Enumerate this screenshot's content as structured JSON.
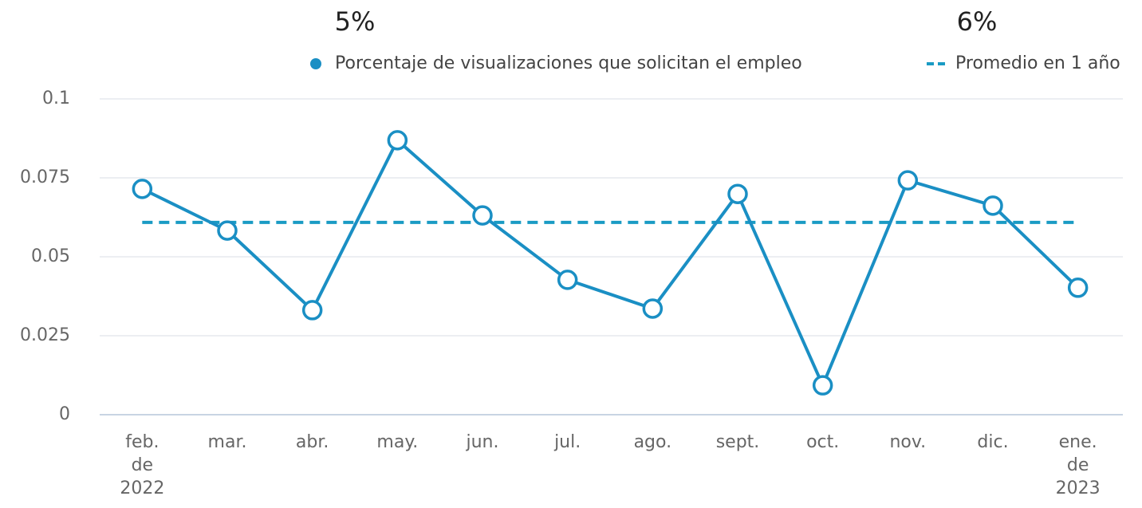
{
  "chart_data": {
    "type": "line",
    "summary": [
      {
        "value": 5,
        "label": "5%"
      },
      {
        "value": 6,
        "label": "6%"
      }
    ],
    "categories": [
      "feb. de 2022",
      "mar.",
      "abr.",
      "may.",
      "jun.",
      "jul.",
      "ago.",
      "sept.",
      "oct.",
      "nov.",
      "dic.",
      "ene. de 2023"
    ],
    "series": [
      {
        "name": "Porcentaje de visualizaciones que solicitan el empleo",
        "color": "#1a8fc4",
        "values": [
          0.0715,
          0.0583,
          0.0331,
          0.0869,
          0.0631,
          0.0427,
          0.0336,
          0.0699,
          0.0093,
          0.0742,
          0.0662,
          0.0402
        ]
      }
    ],
    "average": {
      "name": "Promedio en 1 año",
      "value": 0.0609,
      "color": "#1a9bc4"
    },
    "ylim": [
      0,
      0.1
    ],
    "yticks": [
      0,
      0.025,
      0.05,
      0.075,
      0.1
    ],
    "grid": true
  }
}
